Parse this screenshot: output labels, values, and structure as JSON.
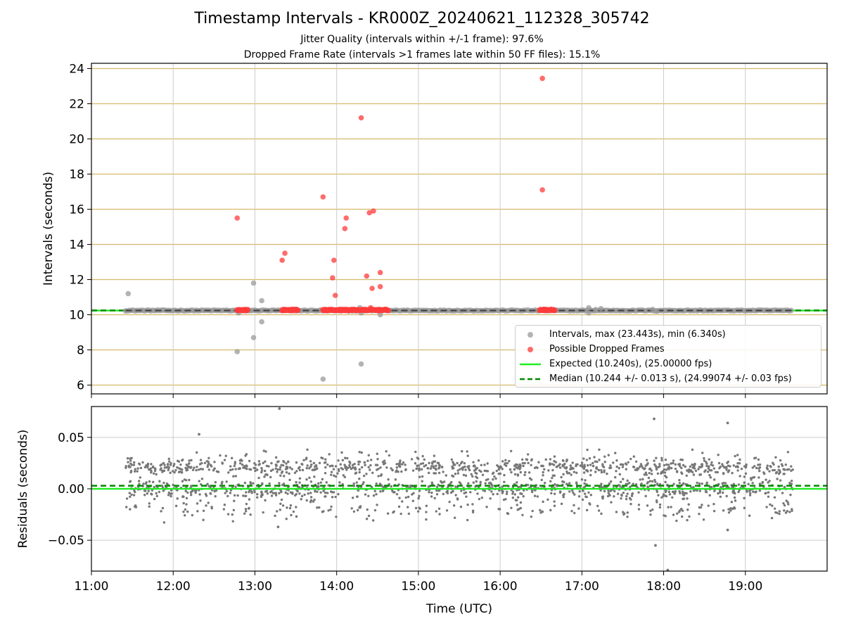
{
  "figure": {
    "title": "Timestamp Intervals - KR000Z_20240621_112328_305742",
    "subtitle_1": "Jitter Quality (intervals within +/-1 frame): 97.6%",
    "subtitle_2": "Dropped Frame Rate (intervals >1 frames late within 50 FF files): 15.1%"
  },
  "colors": {
    "intervals": "#999999",
    "dropped": "#ff3b3b",
    "expected": "#22ee22",
    "median": "#008800",
    "residual_points": "#777777",
    "horizontal_grid_top": "#d4b86a",
    "grid": "#cccccc"
  },
  "legend": {
    "placement": "lower right",
    "intervals": "Intervals, max (23.443s), min (6.340s)",
    "dropped": "Possible Dropped Frames",
    "expected": "Expected (10.240s), (25.00000 fps)",
    "median": "Median (10.244 +/- 0.013 s), (24.99074 +/- 0.03 fps)"
  },
  "chart_data": [
    {
      "type": "scatter",
      "panel": "intervals",
      "ylabel": "Intervals (seconds)",
      "xlabel": "",
      "xlim": [
        "11:00",
        "20:00"
      ],
      "ylim": [
        5.5,
        24.3
      ],
      "yticks": [
        6,
        8,
        10,
        12,
        14,
        16,
        18,
        20,
        22,
        24
      ],
      "ytick_labels": [
        "6",
        "8",
        "10",
        "12",
        "14",
        "16",
        "18",
        "20",
        "22",
        "24"
      ],
      "grid": true,
      "expected_line": 10.24,
      "median_line": 10.244,
      "series": [
        {
          "name": "Intervals, max (23.443s), min (6.340s)",
          "baseline": {
            "from": "11:25",
            "to": "19:35",
            "value": 10.24
          },
          "outliers": [
            {
              "x": "11:27",
              "y": 11.2
            },
            {
              "x": "12:47",
              "y": 7.9
            },
            {
              "x": "12:48",
              "y": 10.1
            },
            {
              "x": "12:59",
              "y": 8.7
            },
            {
              "x": "12:59",
              "y": 11.8
            },
            {
              "x": "13:05",
              "y": 10.8
            },
            {
              "x": "13:05",
              "y": 9.6
            },
            {
              "x": "13:50",
              "y": 6.34
            },
            {
              "x": "14:17",
              "y": 10.4
            },
            {
              "x": "14:18",
              "y": 7.2
            },
            {
              "x": "14:18",
              "y": 10.1
            },
            {
              "x": "14:32",
              "y": 10.0
            },
            {
              "x": "17:05",
              "y": 10.4
            },
            {
              "x": "17:05",
              "y": 10.1
            },
            {
              "x": "17:10",
              "y": 10.3
            },
            {
              "x": "17:14",
              "y": 10.35
            },
            {
              "x": "17:52",
              "y": 10.3
            },
            {
              "x": "17:55",
              "y": 10.2
            }
          ]
        },
        {
          "name": "Possible Dropped Frames",
          "points": [
            {
              "x": "12:47",
              "y": 15.5
            },
            {
              "x": "13:20",
              "y": 13.1
            },
            {
              "x": "13:22",
              "y": 13.5
            },
            {
              "x": "13:50",
              "y": 16.7
            },
            {
              "x": "13:57",
              "y": 12.1
            },
            {
              "x": "13:58",
              "y": 13.1
            },
            {
              "x": "13:59",
              "y": 11.1
            },
            {
              "x": "14:06",
              "y": 14.9
            },
            {
              "x": "14:07",
              "y": 15.5
            },
            {
              "x": "14:18",
              "y": 21.2
            },
            {
              "x": "14:22",
              "y": 12.2
            },
            {
              "x": "14:24",
              "y": 15.8
            },
            {
              "x": "14:25",
              "y": 10.4
            },
            {
              "x": "14:26",
              "y": 11.5
            },
            {
              "x": "14:27",
              "y": 15.9
            },
            {
              "x": "14:32",
              "y": 12.4
            },
            {
              "x": "14:32",
              "y": 11.6
            },
            {
              "x": "16:31",
              "y": 23.443
            },
            {
              "x": "16:31",
              "y": 17.1
            }
          ],
          "clusters_near_10_25": [
            {
              "from": "12:47",
              "to": "12:55"
            },
            {
              "from": "13:20",
              "to": "13:32"
            },
            {
              "from": "13:50",
              "to": "14:38"
            },
            {
              "from": "16:29",
              "to": "16:40"
            }
          ]
        }
      ]
    },
    {
      "type": "scatter",
      "panel": "residuals",
      "ylabel": "Residuals (seconds)",
      "xlabel": "Time (UTC)",
      "xlim": [
        "11:00",
        "20:00"
      ],
      "xticks": [
        "11:00",
        "12:00",
        "13:00",
        "14:00",
        "15:00",
        "16:00",
        "17:00",
        "18:00",
        "19:00"
      ],
      "ylim": [
        -0.08,
        0.08
      ],
      "yticks": [
        -0.05,
        0.0,
        0.05
      ],
      "ytick_labels": [
        "−0.05",
        "0.00",
        "0.05"
      ],
      "grid": true,
      "expected_line": 0.0,
      "median_line": 0.003,
      "residual_bands": [
        0.021,
        0.0,
        -0.02
      ],
      "notable_points": [
        {
          "x": "13:18",
          "y": 0.078
        },
        {
          "x": "12:19",
          "y": 0.053
        },
        {
          "x": "13:17",
          "y": -0.037
        },
        {
          "x": "17:53",
          "y": 0.068
        },
        {
          "x": "17:54",
          "y": -0.055
        },
        {
          "x": "18:03",
          "y": -0.079
        },
        {
          "x": "18:47",
          "y": 0.064
        },
        {
          "x": "18:47",
          "y": -0.04
        }
      ]
    }
  ]
}
